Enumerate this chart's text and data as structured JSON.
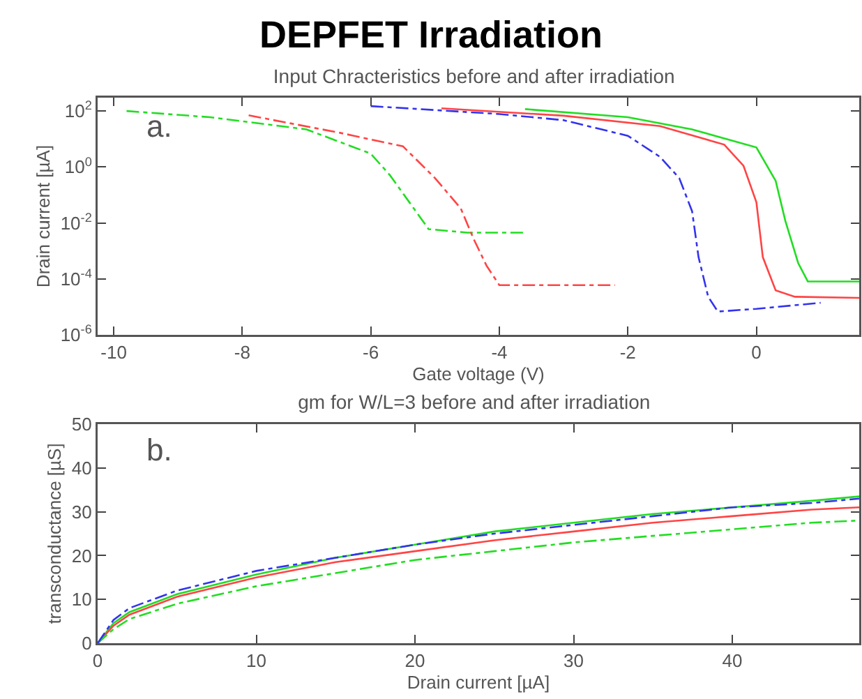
{
  "chart_data": [
    {
      "type": "line",
      "title": "DEPFET Irradiation",
      "subtitle": "Input Chracteristics before and after irradiation",
      "xlabel": "Gate voltage (V)",
      "ylabel": "Drain current [µA]",
      "log": "y",
      "grid": false,
      "marker": "none",
      "xlim": [
        -10.25,
        1.6
      ],
      "xticks": [
        -10,
        -8,
        -6,
        -4,
        -2,
        0
      ],
      "ylim": [
        1e-06,
        300
      ],
      "yticks": [
        {
          "value": 100,
          "label": "10$^{2}$"
        },
        {
          "value": 1,
          "label": "10$^{0}$"
        },
        {
          "value": 0.01,
          "label": "10$^{-2}$"
        },
        {
          "value": 0.0001,
          "label": "10$^{-4}$"
        },
        {
          "value": 1e-06,
          "label": "10$^{-6}$"
        }
      ],
      "annotations": [
        "a."
      ],
      "series": [
        {
          "color": "#22dd22",
          "line_style": "dashed",
          "x": [
            -9.8,
            -8.5,
            -7,
            -6,
            -5.7,
            -5.4,
            -5.1,
            -4.5,
            -3.6
          ],
          "values": [
            100,
            60,
            22,
            3,
            0.5,
            0.055,
            0.006,
            0.0045,
            0.0045
          ]
        },
        {
          "color": "#ff4444",
          "line_style": "dashed",
          "x": [
            -7.9,
            -6.5,
            -5.5,
            -5,
            -4.6,
            -4.4,
            -4.2,
            -4,
            -3,
            -2.2
          ],
          "values": [
            70,
            17,
            5.5,
            0.4,
            0.033,
            0.0027,
            0.0003,
            6e-05,
            6e-05,
            6e-05
          ]
        },
        {
          "color": "#3333ee",
          "line_style": "dashed",
          "x": [
            -6,
            -4,
            -3,
            -2,
            -1.5,
            -1.2,
            -1,
            -0.9,
            -0.75,
            -0.6,
            0,
            1
          ],
          "values": [
            150,
            78,
            47,
            13,
            2.3,
            0.4,
            0.026,
            0.0006,
            2.3e-05,
            6.8e-06,
            8.5e-06,
            1.4e-05
          ]
        },
        {
          "color": "#ff4444",
          "line_style": "solid",
          "x": [
            -4.9,
            -3,
            -1.5,
            -0.5,
            -0.2,
            0,
            0.1,
            0.3,
            0.6,
            1.6
          ],
          "values": [
            125,
            68,
            29,
            6.3,
            1.1,
            0.055,
            0.0006,
            3.9e-05,
            2.3e-05,
            2.1e-05
          ]
        },
        {
          "color": "#22dd22",
          "line_style": "solid",
          "x": [
            -3.6,
            -2,
            -1,
            0,
            0.3,
            0.45,
            0.65,
            0.8,
            1.6
          ],
          "values": [
            117,
            60,
            22,
            5,
            0.32,
            0.012,
            0.00037,
            8.1e-05,
            8.1e-05
          ]
        }
      ]
    },
    {
      "type": "line",
      "title": "gm for W/L=3 before and after irradiation",
      "xlabel": "Drain current [µA]",
      "ylabel": "transconductance [µS]",
      "grid": false,
      "marker": "none",
      "xlim": [
        0,
        48
      ],
      "xticks": [
        0,
        10,
        20,
        30,
        40
      ],
      "ylim": [
        0,
        50
      ],
      "yticks": [
        0,
        10,
        20,
        30,
        40,
        50
      ],
      "annotations": [
        "b."
      ],
      "x": [
        0,
        1,
        2,
        5,
        10,
        15,
        20,
        25,
        30,
        35,
        40,
        45,
        48
      ],
      "series": [
        {
          "color": "#22dd22",
          "line_style": "solid",
          "values": [
            0,
            4.6,
            7.1,
            11.2,
            15.7,
            19.5,
            22.5,
            25.5,
            27.5,
            29.5,
            31,
            32.5,
            33.5
          ]
        },
        {
          "color": "#ff4444",
          "line_style": "solid",
          "values": [
            0,
            4,
            6.5,
            10.6,
            15,
            18.5,
            21,
            23.5,
            25.5,
            27.5,
            29,
            30.5,
            31
          ]
        },
        {
          "color": "#22dd22",
          "line_style": "dashed",
          "values": [
            0,
            3.2,
            5.5,
            9,
            13,
            16,
            19,
            21,
            23,
            24.5,
            26,
            27.5,
            28
          ]
        },
        {
          "color": "#3333ee",
          "line_style": "dashed",
          "values": [
            0,
            5.3,
            8,
            12,
            16.5,
            19.5,
            22.5,
            25,
            27,
            29,
            31,
            32,
            33
          ]
        }
      ]
    }
  ]
}
